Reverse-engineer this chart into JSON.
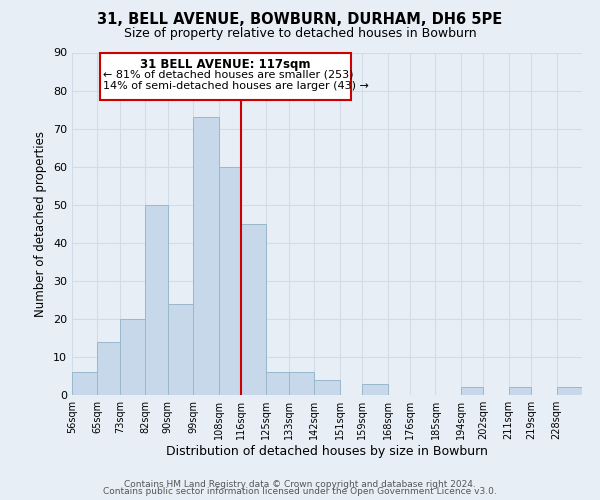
{
  "title": "31, BELL AVENUE, BOWBURN, DURHAM, DH6 5PE",
  "subtitle": "Size of property relative to detached houses in Bowburn",
  "xlabel": "Distribution of detached houses by size in Bowburn",
  "ylabel": "Number of detached properties",
  "bar_color": "#c8d8eb",
  "bar_edge_color": "#9ab8cc",
  "bin_labels": [
    "56sqm",
    "65sqm",
    "73sqm",
    "82sqm",
    "90sqm",
    "99sqm",
    "108sqm",
    "116sqm",
    "125sqm",
    "133sqm",
    "142sqm",
    "151sqm",
    "159sqm",
    "168sqm",
    "176sqm",
    "185sqm",
    "194sqm",
    "202sqm",
    "211sqm",
    "219sqm",
    "228sqm"
  ],
  "bin_left_edges": [
    56,
    65,
    73,
    82,
    90,
    99,
    108,
    116,
    125,
    133,
    142,
    151,
    159,
    168,
    176,
    185,
    194,
    202,
    211,
    219,
    228
  ],
  "bin_widths": [
    9,
    8,
    9,
    8,
    9,
    9,
    8,
    9,
    8,
    9,
    9,
    8,
    9,
    8,
    9,
    9,
    8,
    9,
    8,
    9,
    9
  ],
  "bar_heights": [
    6,
    14,
    20,
    50,
    24,
    73,
    60,
    45,
    6,
    6,
    4,
    0,
    3,
    0,
    0,
    0,
    2,
    0,
    2,
    0,
    2
  ],
  "vline_x": 116,
  "vline_color": "#cc0000",
  "ylim": [
    0,
    90
  ],
  "yticks": [
    0,
    10,
    20,
    30,
    40,
    50,
    60,
    70,
    80,
    90
  ],
  "xlim_left": 56,
  "xlim_right": 237,
  "annotation_title": "31 BELL AVENUE: 117sqm",
  "annotation_line1": "← 81% of detached houses are smaller (253)",
  "annotation_line2": "14% of semi-detached houses are larger (43) →",
  "annotation_box_color": "#ffffff",
  "annotation_box_edge": "#cc0000",
  "footer1": "Contains HM Land Registry data © Crown copyright and database right 2024.",
  "footer2": "Contains public sector information licensed under the Open Government Licence v3.0.",
  "grid_color": "#d0dce8",
  "background_color": "#e8eef5"
}
